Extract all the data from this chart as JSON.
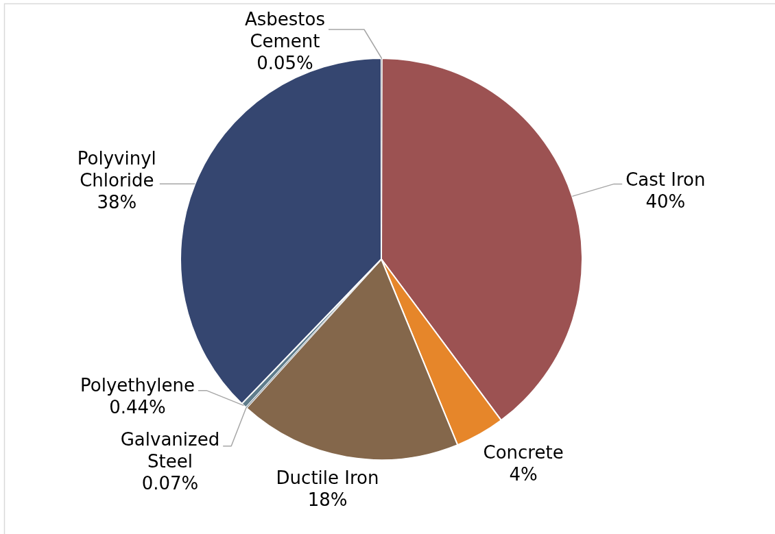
{
  "chart_data": {
    "type": "pie",
    "categories": [
      "Asbestos Cement",
      "Cast Iron",
      "Concrete",
      "Ductile Iron",
      "Galvanized Steel",
      "Polyethylene",
      "Polyvinyl Chloride"
    ],
    "values": [
      0.05,
      40,
      4,
      18,
      0.07,
      0.44,
      38
    ],
    "colors": [
      "#a5a5a5",
      "#9c5252",
      "#e6862a",
      "#84674b",
      "#7f8f99",
      "#5f7d8c",
      "#354670"
    ],
    "value_labels": [
      "0.05%",
      "40%",
      "4%",
      "18%",
      "0.07%",
      "0.44%",
      "38%"
    ]
  }
}
